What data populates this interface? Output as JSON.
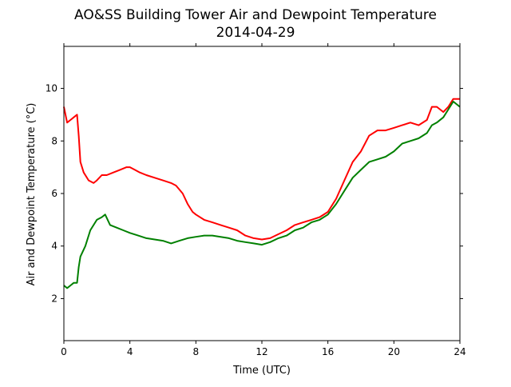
{
  "chart_data": {
    "type": "line",
    "title": "AO&SS Building Tower Air and Dewpoint Temperature",
    "subtitle": "2014-04-29",
    "xlabel": "Time (UTC)",
    "ylabel": "Air and Dewpoint Temperature (°C)",
    "xlim": [
      0,
      24
    ],
    "ylim": [
      0.4,
      11.6
    ],
    "xticks": [
      0,
      4,
      8,
      12,
      16,
      20,
      24
    ],
    "yticks": [
      2,
      4,
      6,
      8,
      10
    ],
    "grid": false,
    "legend": "none",
    "series": [
      {
        "color": "#ff0000",
        "x": [
          0,
          0.2,
          0.4,
          0.6,
          0.8,
          0.9,
          1.0,
          1.2,
          1.5,
          1.8,
          2.0,
          2.3,
          2.6,
          3.0,
          3.4,
          3.8,
          4.0,
          4.3,
          4.6,
          5.0,
          5.5,
          6.0,
          6.5,
          6.8,
          7.2,
          7.5,
          7.8,
          8.0,
          8.5,
          9.0,
          9.5,
          10.0,
          10.5,
          11.0,
          11.5,
          12.0,
          12.5,
          13.0,
          13.5,
          14.0,
          14.5,
          15.0,
          15.5,
          16.0,
          16.5,
          17.0,
          17.5,
          18.0,
          18.5,
          19.0,
          19.5,
          20.0,
          20.5,
          21.0,
          21.5,
          22.0,
          22.3,
          22.6,
          23.0,
          23.3,
          23.6,
          24.0
        ],
        "y": [
          9.3,
          8.7,
          8.8,
          8.9,
          9.0,
          8.2,
          7.2,
          6.8,
          6.5,
          6.4,
          6.5,
          6.7,
          6.7,
          6.8,
          6.9,
          7.0,
          7.0,
          6.9,
          6.8,
          6.7,
          6.6,
          6.5,
          6.4,
          6.3,
          6.0,
          5.6,
          5.3,
          5.2,
          5.0,
          4.9,
          4.8,
          4.7,
          4.6,
          4.4,
          4.3,
          4.25,
          4.3,
          4.45,
          4.6,
          4.8,
          4.9,
          5.0,
          5.1,
          5.3,
          5.8,
          6.5,
          7.2,
          7.6,
          8.2,
          8.4,
          8.4,
          8.5,
          8.6,
          8.7,
          8.6,
          8.8,
          9.3,
          9.3,
          9.1,
          9.3,
          9.6,
          9.6
        ]
      },
      {
        "color": "#008000",
        "x": [
          0,
          0.2,
          0.4,
          0.6,
          0.8,
          0.9,
          1.0,
          1.3,
          1.6,
          2.0,
          2.3,
          2.5,
          2.8,
          3.2,
          3.6,
          4.0,
          4.5,
          5.0,
          5.5,
          6.0,
          6.5,
          7.0,
          7.5,
          8.0,
          8.5,
          9.0,
          9.5,
          10.0,
          10.5,
          11.0,
          11.5,
          12.0,
          12.5,
          13.0,
          13.5,
          14.0,
          14.5,
          15.0,
          15.5,
          16.0,
          16.5,
          17.0,
          17.5,
          18.0,
          18.5,
          19.0,
          19.5,
          20.0,
          20.5,
          21.0,
          21.5,
          22.0,
          22.3,
          22.6,
          23.0,
          23.3,
          23.6,
          24.0
        ],
        "y": [
          2.5,
          2.4,
          2.5,
          2.6,
          2.6,
          3.2,
          3.6,
          4.0,
          4.6,
          5.0,
          5.1,
          5.2,
          4.8,
          4.7,
          4.6,
          4.5,
          4.4,
          4.3,
          4.25,
          4.2,
          4.1,
          4.2,
          4.3,
          4.35,
          4.4,
          4.4,
          4.35,
          4.3,
          4.2,
          4.15,
          4.1,
          4.05,
          4.15,
          4.3,
          4.4,
          4.6,
          4.7,
          4.9,
          5.0,
          5.2,
          5.6,
          6.1,
          6.6,
          6.9,
          7.2,
          7.3,
          7.4,
          7.6,
          7.9,
          8.0,
          8.1,
          8.3,
          8.6,
          8.7,
          8.9,
          9.2,
          9.5,
          9.3
        ]
      }
    ]
  }
}
